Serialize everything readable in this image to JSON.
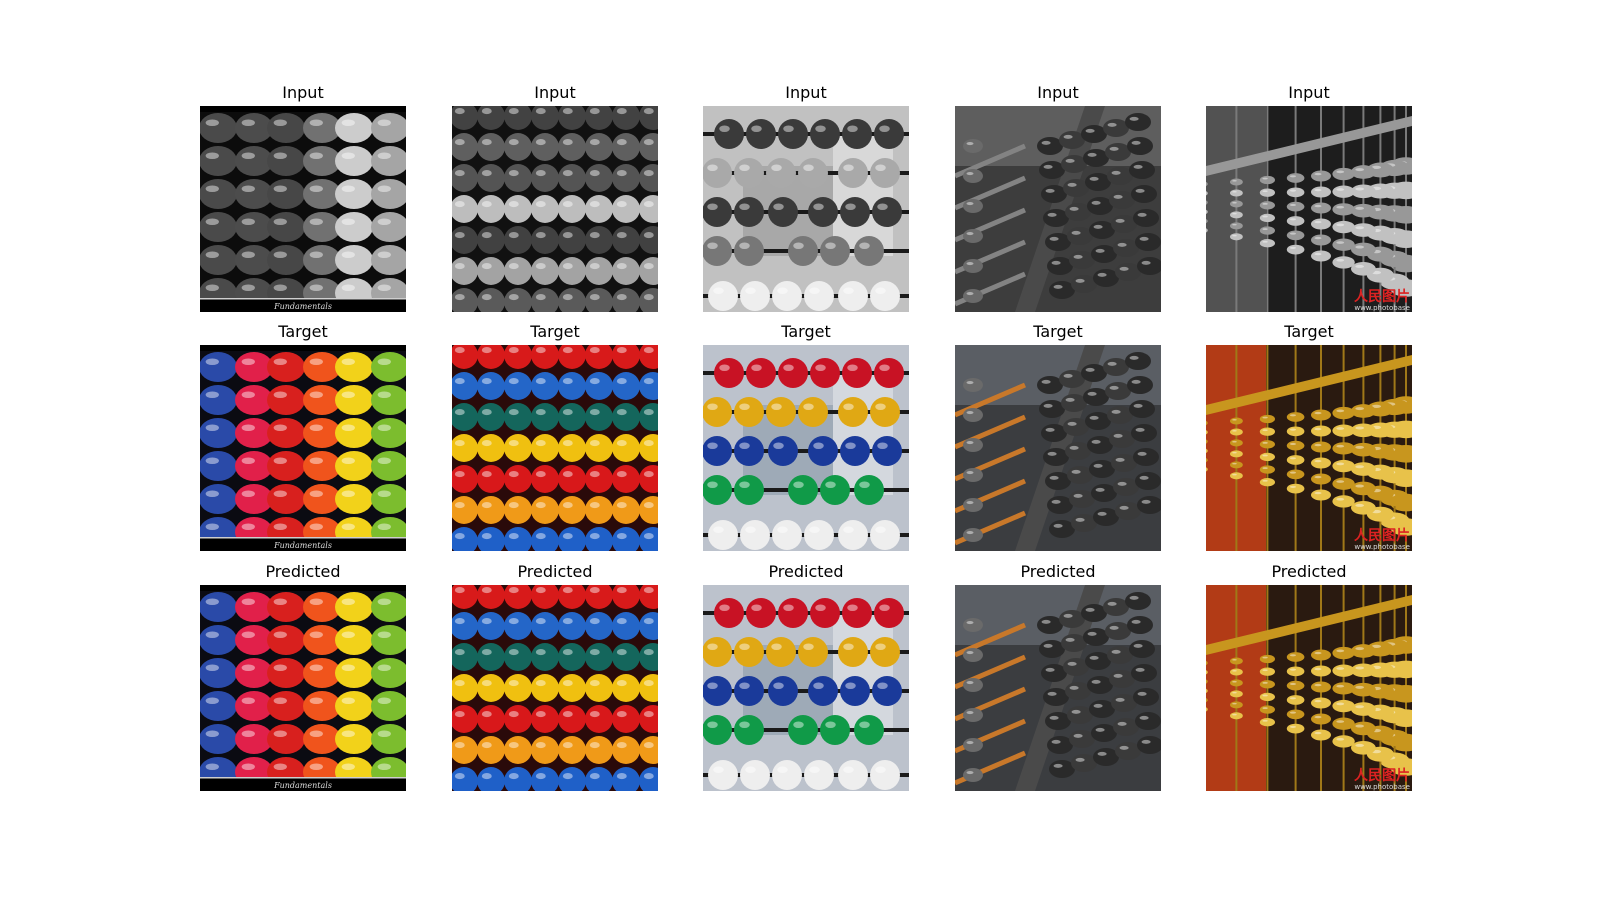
{
  "rows": [
    {
      "label": "Input",
      "mode": "grayscale"
    },
    {
      "label": "Target",
      "mode": "color"
    },
    {
      "label": "Predicted",
      "mode": "color"
    }
  ],
  "images": [
    {
      "subject": "abacus-beads-vertical-rainbow",
      "caption": "Fundamentals",
      "colors": [
        "#2a4aa8",
        "#e1204a",
        "#d8201e",
        "#f0541c",
        "#f2d21a",
        "#7cbd2e"
      ]
    },
    {
      "subject": "abacus-beads-horizontal-rows",
      "caption": "",
      "colors": [
        "#d81a1a",
        "#2466c8",
        "#14665c",
        "#f0c010",
        "#d8181a",
        "#f09a18",
        "#1f60c8"
      ]
    },
    {
      "subject": "abacus-beads-rows-blurred-background",
      "caption": "",
      "colors": [
        "#c81224",
        "#e0a814",
        "#1a3a9a",
        "#109a48",
        "#eeeeee"
      ]
    },
    {
      "subject": "dark-abacus-close-up",
      "caption": "",
      "colors": [
        "#2a2a2a",
        "#3a3a3a",
        "#c8782a"
      ]
    },
    {
      "subject": "golden-abacus-perspective",
      "caption": "",
      "watermark": "人民图片",
      "watermark_url": "www.photobase",
      "colors": [
        "#c8961e",
        "#e8c24a",
        "#d44418"
      ]
    }
  ]
}
